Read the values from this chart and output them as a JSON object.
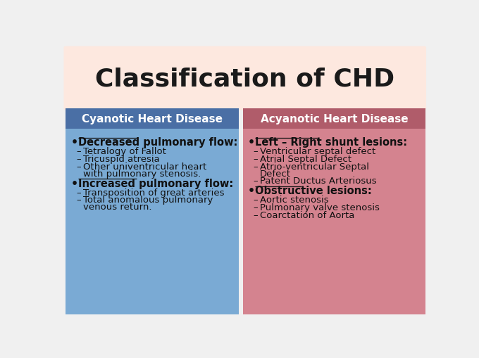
{
  "title": "Classification of CHD",
  "title_bg": "#fde8df",
  "title_fontsize": 26,
  "title_color": "#1a1a1a",
  "left_header": "Cyanotic Heart Disease",
  "left_header_bg": "#4a6fa5",
  "left_header_color": "#ffffff",
  "left_body_bg": "#7aaad4",
  "right_header": "Acyanotic Heart Disease",
  "right_header_bg": "#b05c6a",
  "right_header_color": "#ffffff",
  "right_body_bg": "#d4838f",
  "outer_bg": "#f0f0f0",
  "left_bullet1": "Decreased pulmonary flow:",
  "left_sub1": [
    "Tetralogy of Fallot",
    "Tricuspid atresia",
    "Other univentricular heart\nwith pulmonary stenosis."
  ],
  "left_bullet2": "Increased pulmonary flow:",
  "left_sub2": [
    "Transposition of great arteries",
    "Total anomalous pulmonary\nvenous return."
  ],
  "right_bullet1": "Left – Right shunt lesions:",
  "right_sub1": [
    "Ventricular septal defect",
    "Atrial Septal Defect",
    "Atrio-ventricular Septal\nDefect",
    "Patent Ductus Arteriosus"
  ],
  "right_bullet2": "Obstructive lesions:",
  "right_sub2": [
    "Aortic stenosis",
    "Pulmonary valve stenosis",
    "Coarctation of Aorta"
  ]
}
